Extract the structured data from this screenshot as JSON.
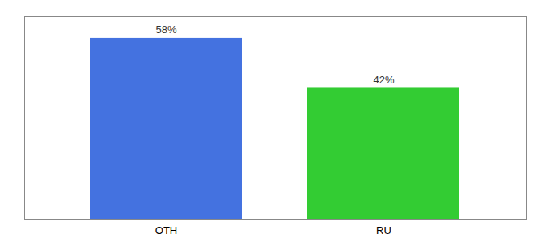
{
  "chart_data": {
    "type": "bar",
    "categories": [
      "OTH",
      "RU"
    ],
    "values": [
      58,
      42
    ],
    "colors": [
      "#4472e0",
      "#33cc33"
    ],
    "value_labels": [
      "58%",
      "42%"
    ],
    "data_labels": true,
    "ylim": [
      0,
      65
    ],
    "yticks": [],
    "tick_labels": "x"
  }
}
